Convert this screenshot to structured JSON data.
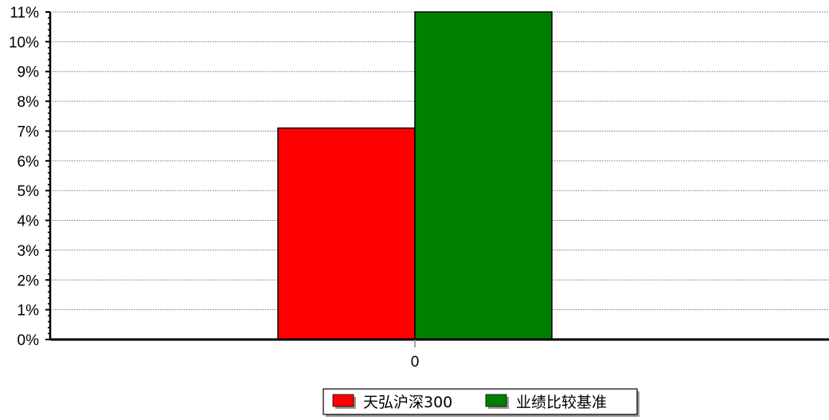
{
  "chart_data": {
    "type": "bar",
    "categories": [
      "0"
    ],
    "series": [
      {
        "name": "天弘沪深300",
        "values": [
          7.1
        ],
        "color": "#ff0000"
      },
      {
        "name": "业绩比较基准",
        "values": [
          11.0
        ],
        "color": "#008000"
      }
    ],
    "ylim": [
      0,
      11
    ],
    "yticks": [
      "0%",
      "1%",
      "2%",
      "3%",
      "4%",
      "5%",
      "6%",
      "7%",
      "8%",
      "9%",
      "10%",
      "11%"
    ],
    "grid": true,
    "legend_position": "bottom-center"
  }
}
